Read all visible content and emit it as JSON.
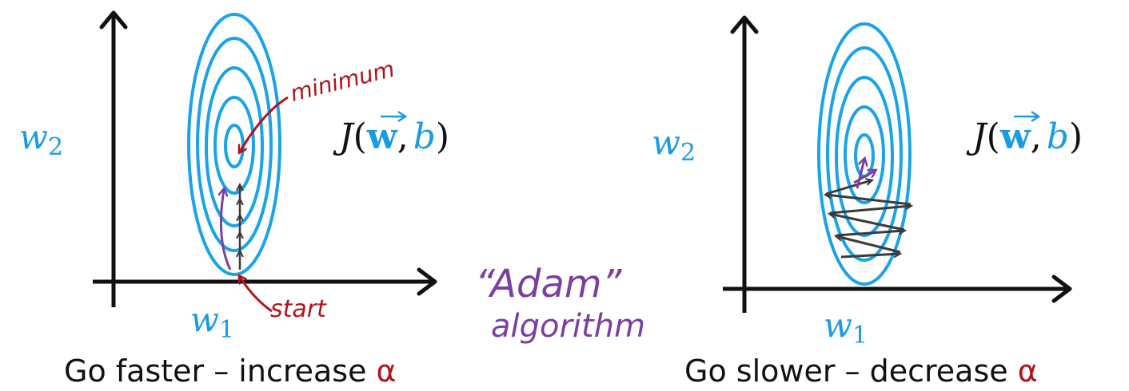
{
  "colors": {
    "contour": "#1aa3e6",
    "axis": "#111111",
    "label_blue": "#1b9ce0",
    "annotation_red": "#b0141a",
    "annotation_purple": "#7a3fa0",
    "step_arrows": "#3a3a3a"
  },
  "left_panel": {
    "x_axis_label": {
      "main": "w",
      "sub": "1"
    },
    "y_axis_label": {
      "main": "w",
      "sub": "2"
    },
    "cost_function": {
      "J": "J",
      "open": "(",
      "w": "w",
      "comma": ",",
      "b": "b",
      "close": ")"
    },
    "minimum_note": "minimum",
    "start_note": "start",
    "caption": {
      "text": "Go faster – increase ",
      "symbol": "α"
    }
  },
  "right_panel": {
    "x_axis_label": {
      "main": "w",
      "sub": "1"
    },
    "y_axis_label": {
      "main": "w",
      "sub": "2"
    },
    "cost_function": {
      "J": "J",
      "open": "(",
      "w": "w",
      "comma": ",",
      "b": "b",
      "close": ")"
    },
    "caption": {
      "text": "Go slower – decrease ",
      "symbol": "α"
    }
  },
  "adam_note": {
    "line1": "“Adam”",
    "line2": "algorithm"
  }
}
